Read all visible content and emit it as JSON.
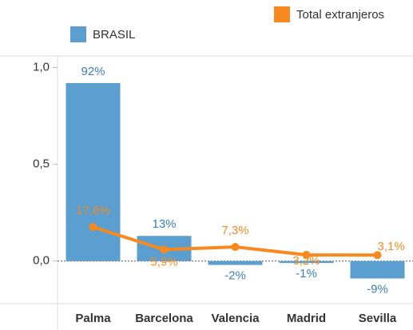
{
  "chart_data": {
    "type": "bar",
    "categories": [
      "Palma",
      "Barcelona",
      "Valencia",
      "Madrid",
      "Sevilla"
    ],
    "series": [
      {
        "name": "BRASIL",
        "type": "bar",
        "color": "#5b9fd1",
        "values": [
          0.92,
          0.13,
          -0.02,
          -0.01,
          -0.09
        ],
        "value_labels": [
          "92%",
          "13%",
          "-2%",
          "-1%",
          "-9%"
        ]
      },
      {
        "name": "Total extranjeros",
        "type": "line",
        "color": "#f7891f",
        "values": [
          0.176,
          0.059,
          0.073,
          0.032,
          0.031
        ],
        "value_labels": [
          "17,6%",
          "5,9%",
          "7,3%",
          "3,2%",
          "3,1%"
        ]
      }
    ],
    "ylim": [
      -0.22,
      1.06
    ],
    "yticks": [
      {
        "value": 0,
        "label": "0,0"
      },
      {
        "value": 0.5,
        "label": "0,5"
      },
      {
        "value": 1,
        "label": "1,0"
      }
    ],
    "grid": false
  }
}
